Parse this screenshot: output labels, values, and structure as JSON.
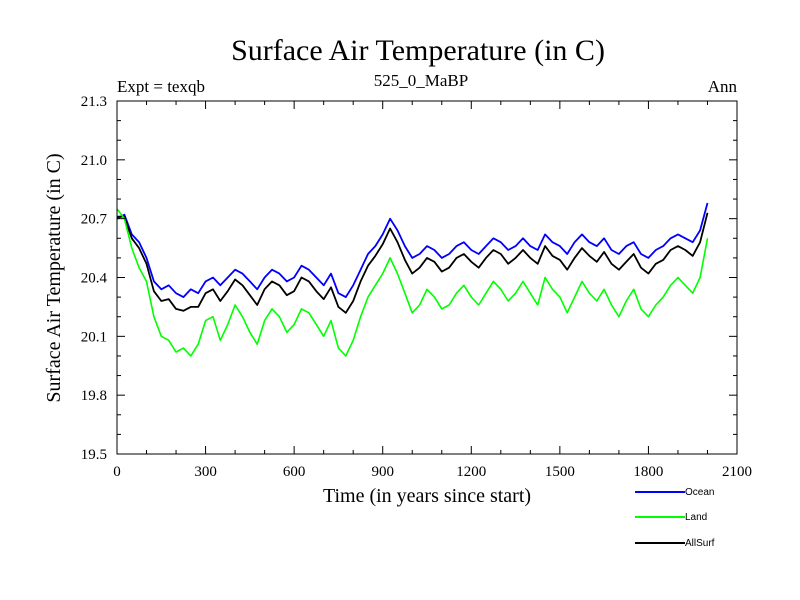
{
  "title": "Surface Air Temperature (in C)",
  "expt_label": "Expt = texqb",
  "subtitle": "525_0_MaBP",
  "season": "Ann",
  "colors": {
    "ocean": "#0000ff",
    "land": "#00ff00",
    "allsurf": "#000000"
  },
  "chart_data": {
    "type": "line",
    "title": "Surface Air Temperature (in C)",
    "xlabel": "Time (in years since start)",
    "ylabel": "Surface Air Temperature (in C)",
    "xlim": [
      0,
      2100
    ],
    "ylim": [
      19.5,
      21.3
    ],
    "x_ticks": [
      "0",
      "300",
      "600",
      "900",
      "1200",
      "1500",
      "1800",
      "2100"
    ],
    "y_ticks": [
      "19.5",
      "19.8",
      "20.1",
      "20.4",
      "20.7",
      "21.0",
      "21.3"
    ],
    "legend_position": "bottom-right, below plot",
    "x": [
      0,
      25,
      50,
      75,
      100,
      125,
      150,
      175,
      200,
      225,
      250,
      275,
      300,
      325,
      350,
      375,
      400,
      425,
      450,
      475,
      500,
      525,
      550,
      575,
      600,
      625,
      650,
      675,
      700,
      725,
      750,
      775,
      800,
      825,
      850,
      875,
      900,
      925,
      950,
      975,
      1000,
      1025,
      1050,
      1075,
      1100,
      1125,
      1150,
      1175,
      1200,
      1225,
      1250,
      1275,
      1300,
      1325,
      1350,
      1375,
      1400,
      1425,
      1450,
      1475,
      1500,
      1525,
      1550,
      1575,
      1600,
      1625,
      1650,
      1675,
      1700,
      1725,
      1750,
      1775,
      1800,
      1825,
      1850,
      1875,
      1900,
      1925,
      1950,
      1975,
      2000
    ],
    "series": [
      {
        "name": "Ocean",
        "values": [
          20.7,
          20.72,
          20.62,
          20.58,
          20.5,
          20.38,
          20.34,
          20.36,
          20.32,
          20.3,
          20.34,
          20.32,
          20.38,
          20.4,
          20.36,
          20.4,
          20.44,
          20.42,
          20.38,
          20.34,
          20.4,
          20.44,
          20.42,
          20.38,
          20.4,
          20.46,
          20.44,
          20.4,
          20.36,
          20.42,
          20.32,
          20.3,
          20.36,
          20.44,
          20.52,
          20.56,
          20.62,
          20.7,
          20.64,
          20.56,
          20.5,
          20.52,
          20.56,
          20.54,
          20.5,
          20.52,
          20.56,
          20.58,
          20.54,
          20.52,
          20.56,
          20.6,
          20.58,
          20.54,
          20.56,
          20.6,
          20.56,
          20.54,
          20.62,
          20.58,
          20.56,
          20.52,
          20.58,
          20.62,
          20.58,
          20.56,
          20.6,
          20.54,
          20.52,
          20.56,
          20.58,
          20.52,
          20.5,
          20.54,
          20.56,
          20.6,
          20.62,
          20.6,
          20.58,
          20.64,
          20.78
        ]
      },
      {
        "name": "Land",
        "values": [
          20.75,
          20.7,
          20.55,
          20.45,
          20.38,
          20.2,
          20.1,
          20.08,
          20.02,
          20.04,
          20.0,
          20.06,
          20.18,
          20.2,
          20.08,
          20.16,
          20.26,
          20.2,
          20.12,
          20.06,
          20.18,
          20.24,
          20.2,
          20.12,
          20.16,
          20.24,
          20.22,
          20.16,
          20.1,
          20.18,
          20.04,
          20.0,
          20.08,
          20.2,
          20.3,
          20.36,
          20.42,
          20.5,
          20.42,
          20.32,
          20.22,
          20.26,
          20.34,
          20.3,
          20.24,
          20.26,
          20.32,
          20.36,
          20.3,
          20.26,
          20.32,
          20.38,
          20.34,
          20.28,
          20.32,
          20.38,
          20.32,
          20.26,
          20.4,
          20.34,
          20.3,
          20.22,
          20.3,
          20.38,
          20.32,
          20.28,
          20.34,
          20.26,
          20.2,
          20.28,
          20.34,
          20.24,
          20.2,
          20.26,
          20.3,
          20.36,
          20.4,
          20.36,
          20.32,
          20.4,
          20.6
        ]
      },
      {
        "name": "AllSurf",
        "values": [
          20.71,
          20.71,
          20.6,
          20.55,
          20.47,
          20.33,
          20.28,
          20.29,
          20.24,
          20.23,
          20.25,
          20.25,
          20.32,
          20.34,
          20.28,
          20.33,
          20.39,
          20.36,
          20.31,
          20.26,
          20.34,
          20.38,
          20.36,
          20.31,
          20.33,
          20.4,
          20.38,
          20.33,
          20.29,
          20.35,
          20.25,
          20.22,
          20.28,
          20.38,
          20.46,
          20.51,
          20.57,
          20.65,
          20.58,
          20.49,
          20.42,
          20.45,
          20.5,
          20.48,
          20.43,
          20.45,
          20.5,
          20.52,
          20.48,
          20.45,
          20.5,
          20.54,
          20.52,
          20.47,
          20.5,
          20.54,
          20.5,
          20.47,
          20.56,
          20.51,
          20.49,
          20.44,
          20.5,
          20.55,
          20.51,
          20.48,
          20.53,
          20.47,
          20.44,
          20.48,
          20.52,
          20.45,
          20.42,
          20.47,
          20.49,
          20.54,
          20.56,
          20.54,
          20.51,
          20.58,
          20.73
        ]
      }
    ]
  }
}
